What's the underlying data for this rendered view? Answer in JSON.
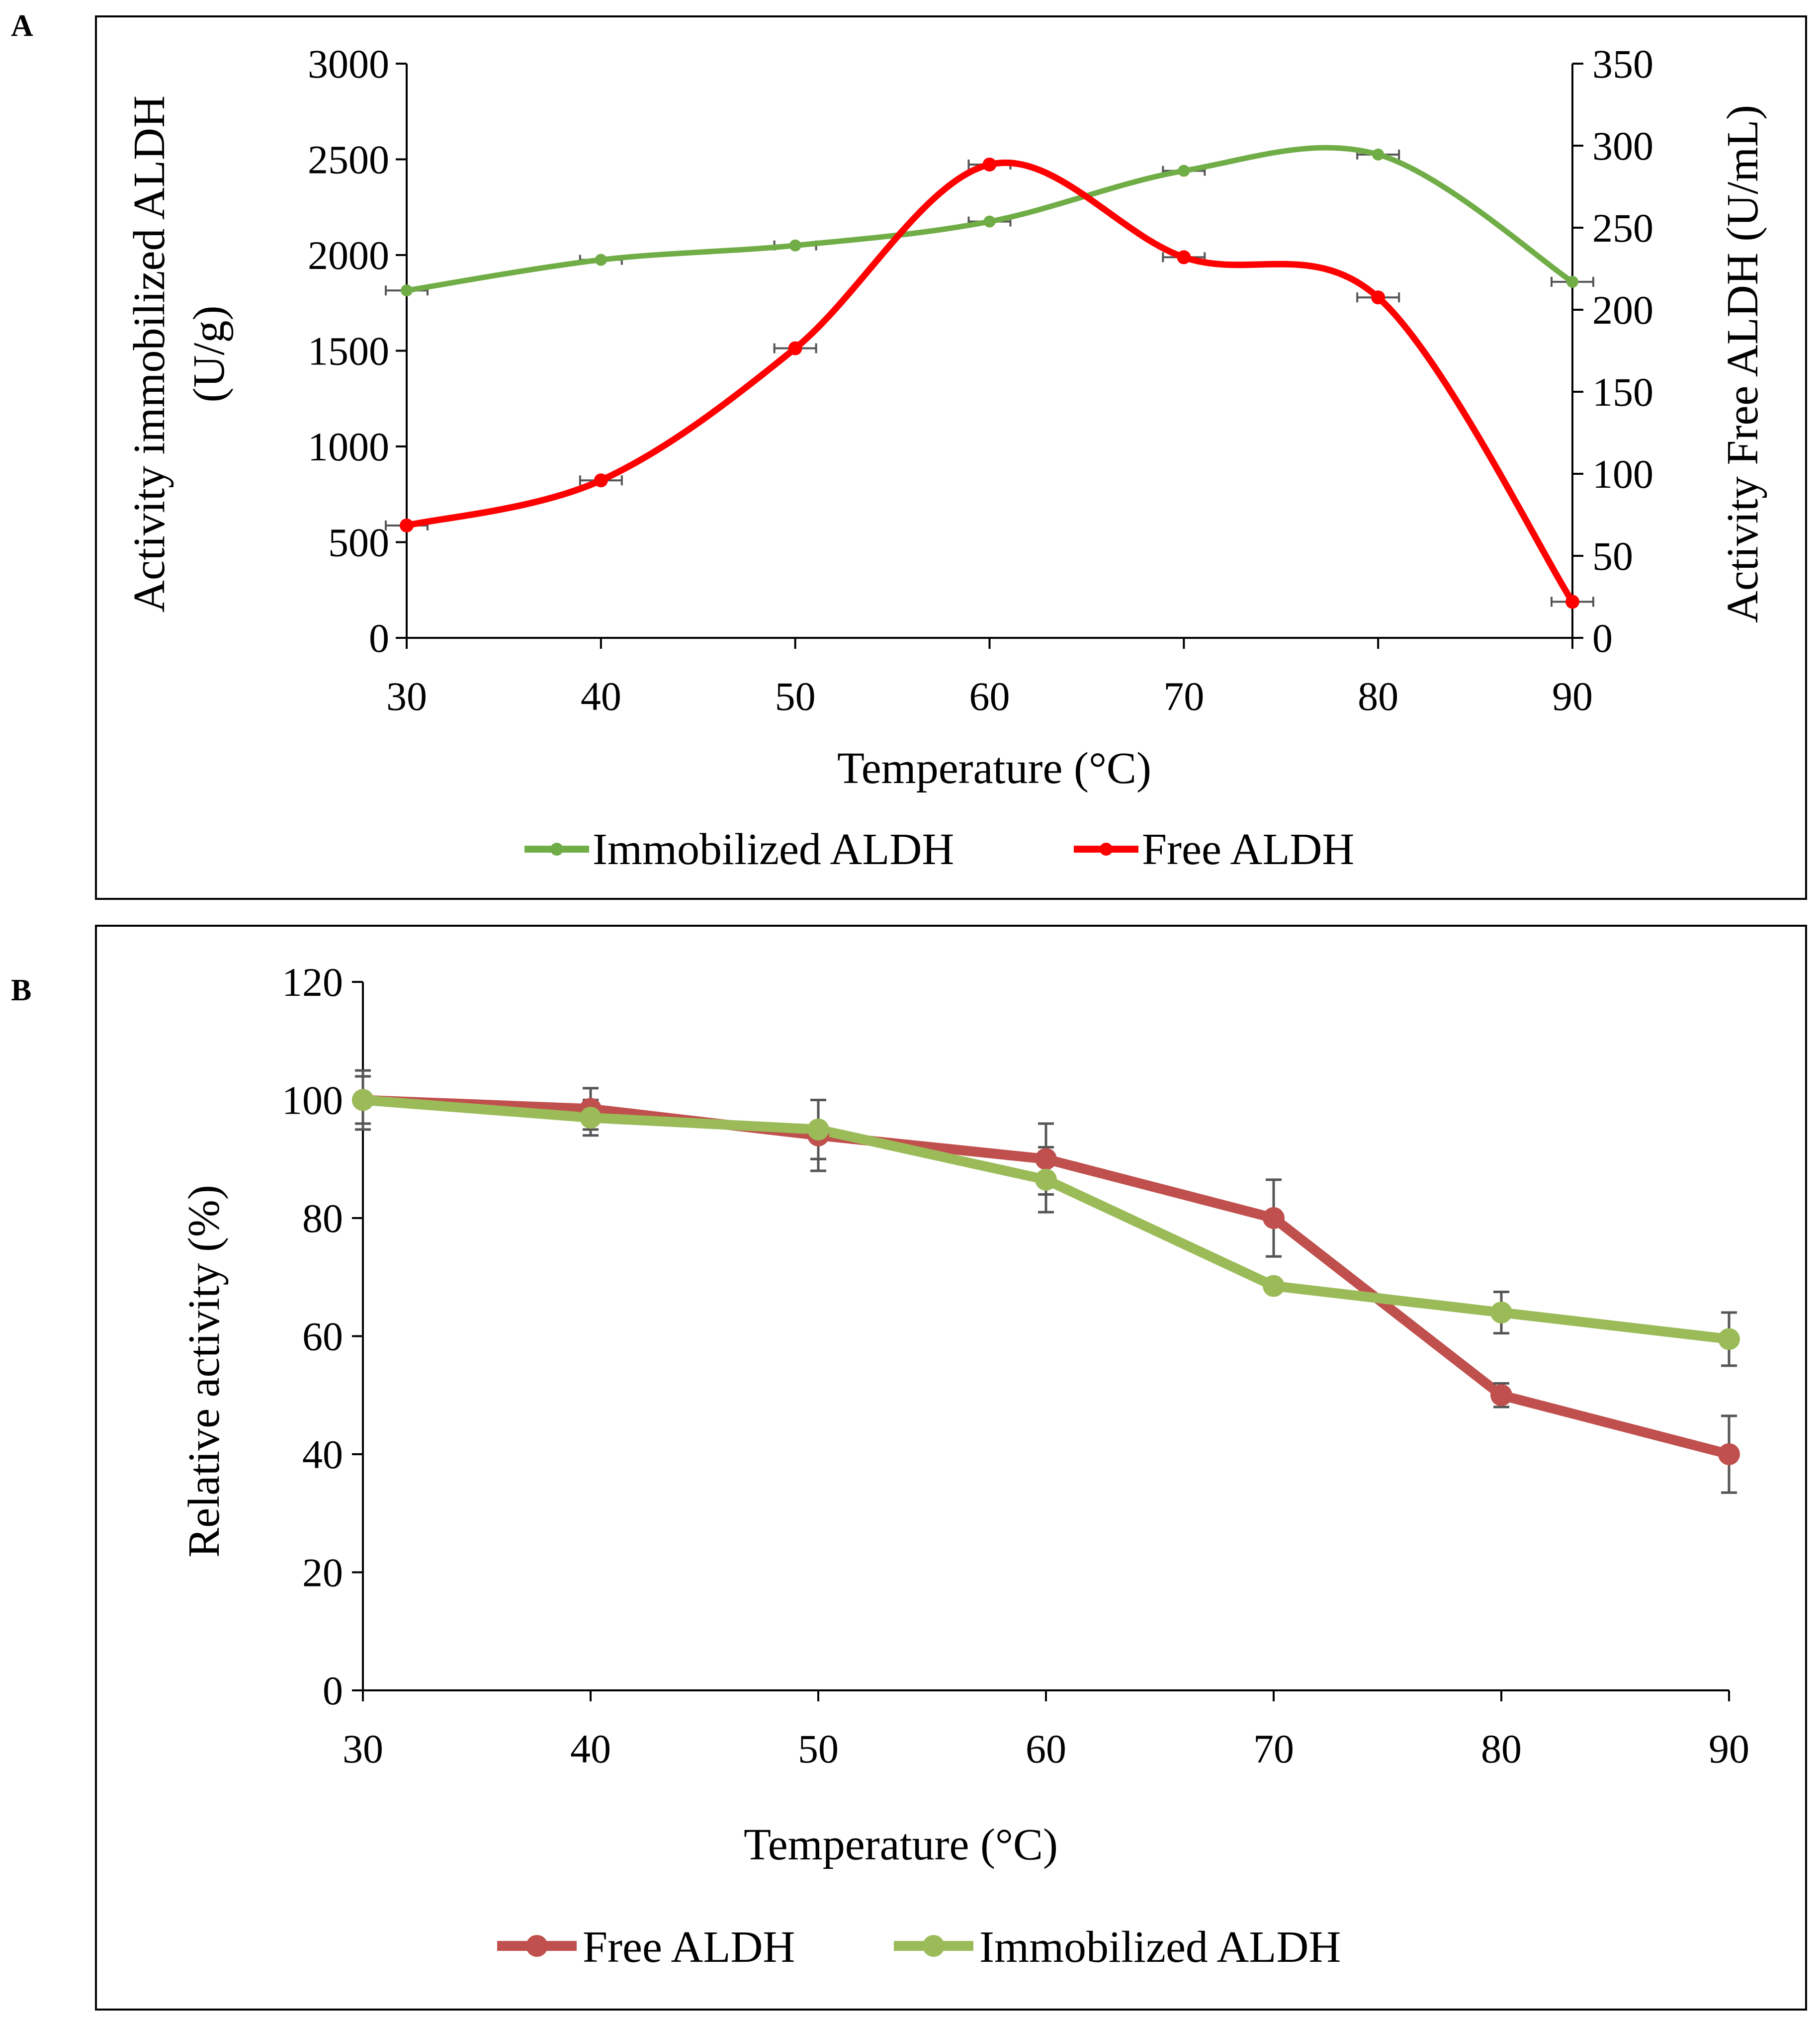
{
  "panels": {
    "a_label": "A",
    "b_label": "B"
  },
  "colors": {
    "immobilized_a": "#70AD47",
    "free_a": "#FF0000",
    "free_b": "#C0504D",
    "immobilized_b": "#9BBB59",
    "axis": "#000000",
    "errorbar": "#555555"
  },
  "chart_data": [
    {
      "id": "A",
      "type": "line",
      "smooth": true,
      "x": [
        30,
        40,
        50,
        60,
        70,
        80,
        90
      ],
      "xlabel": "Temperature (°C)",
      "xlim": [
        30,
        90
      ],
      "xticks": [
        "30",
        "40",
        "50",
        "60",
        "70",
        "80",
        "90"
      ],
      "ylabel_left_line1": "Activity immobilized ALDH",
      "ylabel_left_line2": "(U/g)",
      "ylim_left": [
        0,
        3000
      ],
      "yticks_left": [
        "0",
        "500",
        "1000",
        "1500",
        "2000",
        "2500",
        "3000"
      ],
      "ylabel_right": "Activity Free ALDH (U/mL)",
      "ylim_right": [
        0,
        350
      ],
      "yticks_right": [
        "0",
        "50",
        "100",
        "150",
        "200",
        "250",
        "300",
        "350"
      ],
      "grid": false,
      "legend_position": "bottom-center",
      "series": [
        {
          "name": "Immobilized ALDH",
          "axis": "left",
          "values": [
            1815,
            1975,
            2050,
            2175,
            2440,
            2525,
            1860
          ],
          "errors": [
            25,
            80,
            95,
            60,
            80,
            45,
            60
          ]
        },
        {
          "name": "Free ALDH",
          "axis": "right",
          "values": [
            68.5,
            96,
            176.5,
            288.5,
            232,
            207.5,
            22
          ],
          "errors": [
            2,
            2,
            2,
            3,
            2,
            2,
            2
          ]
        }
      ]
    },
    {
      "id": "B",
      "type": "line",
      "smooth": false,
      "x": [
        30,
        40,
        50,
        60,
        70,
        80,
        90
      ],
      "xlabel": "Temperature (°C)",
      "xlim": [
        30,
        90
      ],
      "xticks": [
        "30",
        "40",
        "50",
        "60",
        "70",
        "80",
        "90"
      ],
      "ylabel": "Relative activity (%)",
      "ylim": [
        0,
        120
      ],
      "yticks": [
        "0",
        "20",
        "40",
        "60",
        "80",
        "100",
        "120"
      ],
      "grid": false,
      "legend_position": "bottom-center",
      "series": [
        {
          "name": "Free ALDH",
          "values": [
            100,
            98.5,
            94,
            90,
            80,
            50,
            40
          ],
          "errors": [
            5,
            3.5,
            6,
            6,
            6.5,
            2,
            6.5
          ]
        },
        {
          "name": "Immobilized ALDH",
          "values": [
            100,
            97,
            95,
            86.5,
            68.5,
            64,
            59.5
          ],
          "errors": [
            4,
            3,
            5,
            5.5,
            1,
            3.5,
            4.5
          ]
        }
      ]
    }
  ]
}
